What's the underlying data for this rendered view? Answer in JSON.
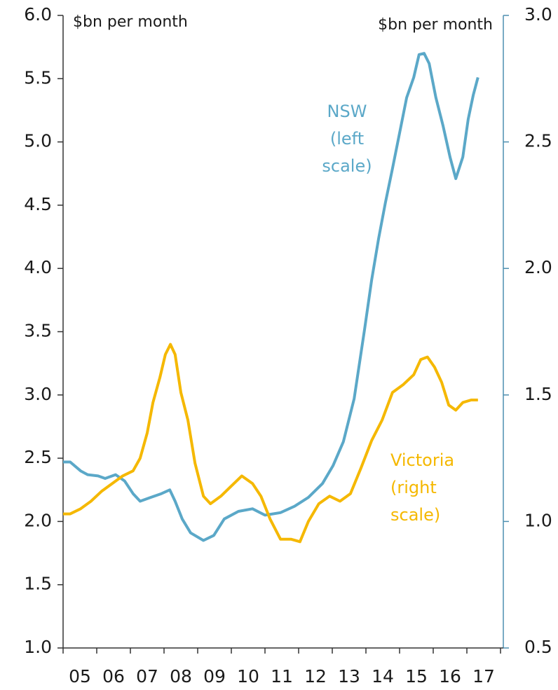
{
  "chart_data": {
    "type": "line",
    "left_unit": "$bn per month",
    "right_unit": "$bn per month",
    "xlim": [
      2005,
      2018
    ],
    "xticks": [
      2005,
      2006,
      2007,
      2008,
      2009,
      2010,
      2011,
      2012,
      2013,
      2014,
      2015,
      2016,
      2017,
      2018
    ],
    "xlabels": [
      {
        "value": 2005.5,
        "label": "05"
      },
      {
        "value": 2006.5,
        "label": "06"
      },
      {
        "value": 2007.5,
        "label": "07"
      },
      {
        "value": 2008.5,
        "label": "08"
      },
      {
        "value": 2009.5,
        "label": "09"
      },
      {
        "value": 2010.5,
        "label": "10"
      },
      {
        "value": 2011.5,
        "label": "11"
      },
      {
        "value": 2012.5,
        "label": "12"
      },
      {
        "value": 2013.5,
        "label": "13"
      },
      {
        "value": 2014.5,
        "label": "14"
      },
      {
        "value": 2015.5,
        "label": "15"
      },
      {
        "value": 2016.5,
        "label": "16"
      },
      {
        "value": 2017.5,
        "label": "17"
      }
    ],
    "ylim": [
      1.0,
      6.0
    ],
    "yticks": [
      {
        "value": 1.0,
        "label": "1.0"
      },
      1.5,
      {
        "value": 2.0,
        "label": "2.0"
      },
      2.5,
      {
        "value": 3.0,
        "label": "3.0"
      },
      3.5,
      {
        "value": 4.0,
        "label": "4.0"
      },
      4.5,
      {
        "value": 5.0,
        "label": "5.0"
      },
      5.5,
      {
        "value": 6.0,
        "label": "6.0"
      }
    ],
    "y2lim": [
      0.5,
      3.0
    ],
    "y2ticks": [
      0.5,
      {
        "value": 1.0,
        "label": "1.0"
      },
      1.5,
      {
        "value": 2.0,
        "label": "2.0"
      },
      2.5,
      {
        "value": 3.0,
        "label": "3.0"
      }
    ],
    "series": [
      {
        "name": "NSW",
        "color": "#5ba8c8",
        "axis": "y",
        "annotation": [
          "NSW",
          "(left",
          "scale)"
        ],
        "x": [
          2005.0,
          2005.21,
          2005.52,
          2005.73,
          2006.04,
          2006.25,
          2006.56,
          2006.83,
          2007.08,
          2007.29,
          2007.6,
          2007.92,
          2008.17,
          2008.33,
          2008.54,
          2008.79,
          2009.17,
          2009.48,
          2009.79,
          2010.21,
          2010.63,
          2011.0,
          2011.46,
          2011.88,
          2012.29,
          2012.71,
          2013.02,
          2013.33,
          2013.65,
          2013.96,
          2014.17,
          2014.38,
          2014.58,
          2014.79,
          2015.0,
          2015.21,
          2015.42,
          2015.58,
          2015.73,
          2015.88,
          2016.08,
          2016.29,
          2016.5,
          2016.67,
          2016.88,
          2017.04,
          2017.19,
          2017.33
        ],
        "values": [
          2.47,
          2.47,
          2.4,
          2.37,
          2.36,
          2.34,
          2.37,
          2.32,
          2.22,
          2.16,
          2.19,
          2.22,
          2.25,
          2.16,
          2.02,
          1.91,
          1.85,
          1.89,
          2.02,
          2.08,
          2.1,
          2.05,
          2.07,
          2.12,
          2.19,
          2.3,
          2.44,
          2.63,
          2.97,
          3.52,
          3.91,
          4.24,
          4.52,
          4.79,
          5.07,
          5.35,
          5.51,
          5.69,
          5.7,
          5.62,
          5.35,
          5.13,
          4.88,
          4.71,
          4.88,
          5.18,
          5.37,
          5.51
        ]
      },
      {
        "name": "Victoria",
        "color": "#f5b800",
        "axis": "y2",
        "annotation": [
          "Victoria",
          "(right",
          "scale)"
        ],
        "x": [
          2005.0,
          2005.21,
          2005.52,
          2005.83,
          2006.15,
          2006.46,
          2006.77,
          2007.08,
          2007.29,
          2007.5,
          2007.67,
          2007.88,
          2008.04,
          2008.19,
          2008.33,
          2008.5,
          2008.71,
          2008.92,
          2009.17,
          2009.38,
          2009.69,
          2010.0,
          2010.31,
          2010.63,
          2010.88,
          2011.15,
          2011.46,
          2011.77,
          2012.04,
          2012.29,
          2012.6,
          2012.92,
          2013.23,
          2013.54,
          2013.85,
          2014.17,
          2014.48,
          2014.79,
          2015.1,
          2015.42,
          2015.63,
          2015.83,
          2016.04,
          2016.25,
          2016.46,
          2016.67,
          2016.88,
          2017.13,
          2017.33
        ],
        "values": [
          1.03,
          1.03,
          1.05,
          1.08,
          1.12,
          1.15,
          1.18,
          1.2,
          1.25,
          1.35,
          1.47,
          1.57,
          1.66,
          1.7,
          1.66,
          1.51,
          1.4,
          1.23,
          1.1,
          1.07,
          1.1,
          1.14,
          1.18,
          1.15,
          1.1,
          1.01,
          0.93,
          0.93,
          0.92,
          1.0,
          1.07,
          1.1,
          1.08,
          1.11,
          1.21,
          1.32,
          1.4,
          1.51,
          1.54,
          1.58,
          1.64,
          1.65,
          1.61,
          1.55,
          1.46,
          1.44,
          1.47,
          1.48,
          1.48
        ]
      }
    ]
  }
}
